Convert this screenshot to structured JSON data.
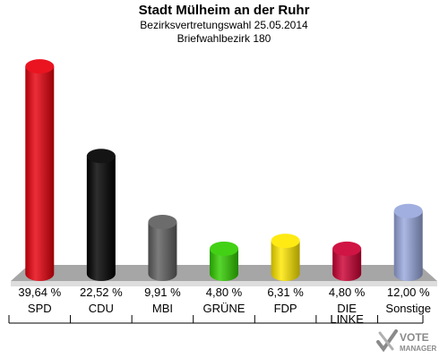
{
  "header": {
    "title": "Stadt Mülheim an der Ruhr",
    "subtitle1": "Bezirksvertretungswahl 25.05.2014",
    "subtitle2": "Briefwahlbezirk 180"
  },
  "logo": {
    "line1": "VOTE",
    "line2": "MANAGER",
    "icon": "checkmark-cross-icon"
  },
  "chart_data": {
    "type": "bar",
    "categories": [
      "SPD",
      "CDU",
      "MBI",
      "GRÜNE",
      "FDP",
      "DIE LINKE",
      "Sonstige"
    ],
    "values": [
      39.64,
      22.52,
      9.91,
      4.8,
      6.31,
      4.8,
      12.0
    ],
    "value_labels": [
      "39,64 %",
      "22,52 %",
      "9,91 %",
      "4,80 %",
      "6,31 %",
      "4,80 %",
      "12,00 %"
    ],
    "colors": [
      "#e8000d",
      "#000000",
      "#5f5f5f",
      "#32cd00",
      "#ffe800",
      "#cc0033",
      "#99a8dd"
    ],
    "ylim": [
      0,
      40
    ],
    "grid": false
  }
}
